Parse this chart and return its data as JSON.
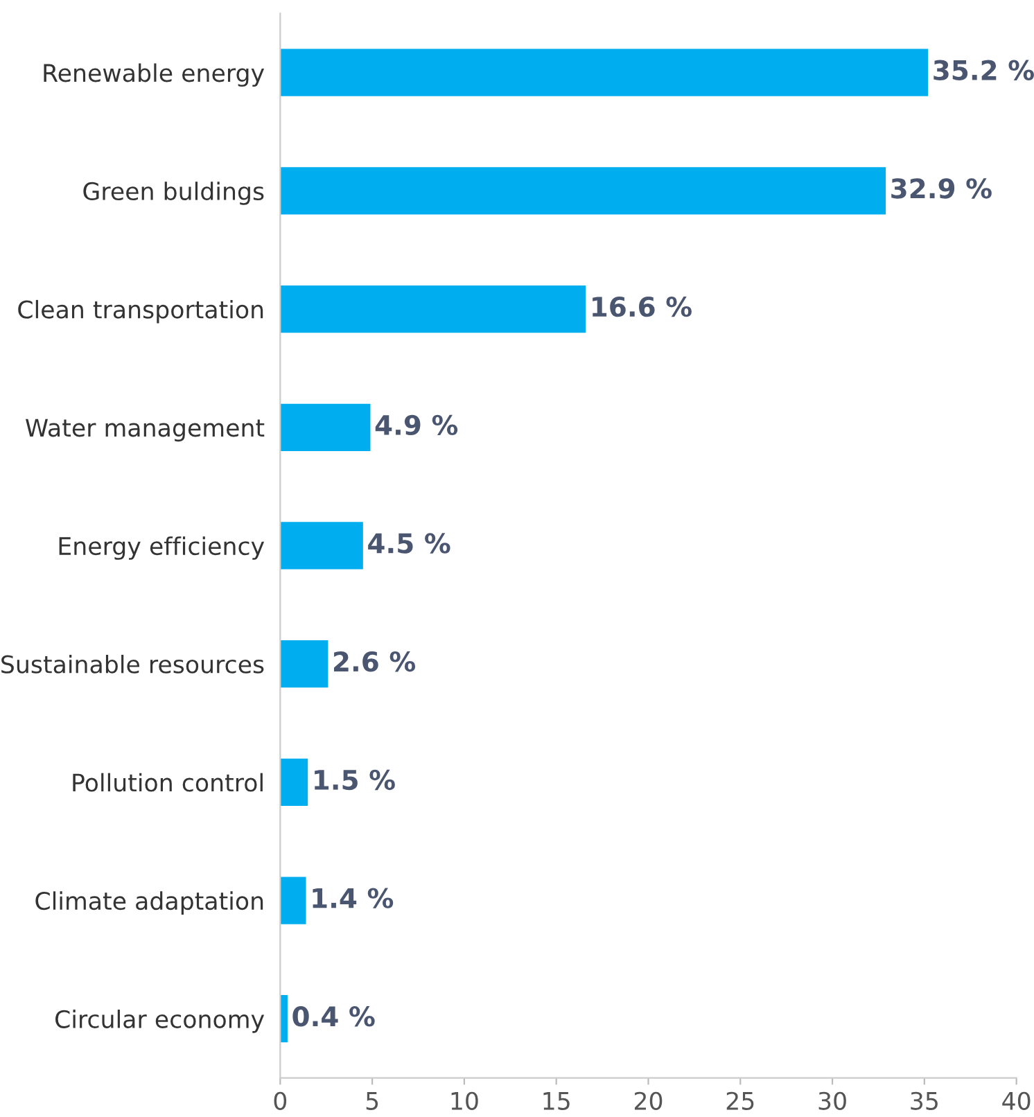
{
  "chart_data": {
    "type": "bar",
    "orientation": "horizontal",
    "categories": [
      "Renewable energy",
      "Green buldings",
      "Clean transportation",
      "Water management",
      "Energy efficiency",
      "Sustainable resources",
      "Pollution control",
      "Climate adaptation",
      "Circular economy"
    ],
    "values": [
      35.2,
      32.9,
      16.6,
      4.9,
      4.5,
      2.6,
      1.5,
      1.4,
      0.4
    ],
    "color": "#00aeef",
    "value_labels": [
      "35.2 %",
      "32.9 %",
      "16.6 %",
      "4.9 %",
      "4.5 %",
      "2.6 %",
      "1.5 %",
      "1.4 %",
      "0.4 %"
    ],
    "xlim": [
      0,
      40
    ],
    "xticks": [
      0,
      5,
      10,
      15,
      20,
      25,
      30,
      35,
      40
    ],
    "grid": false,
    "legend": false
  }
}
